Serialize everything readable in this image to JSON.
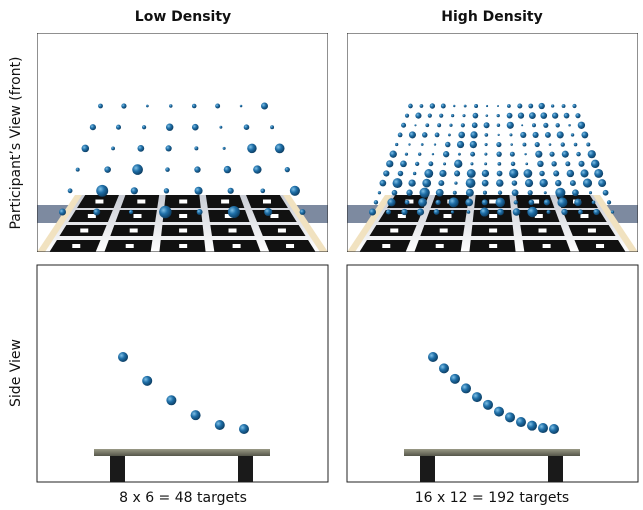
{
  "columns": [
    {
      "title": "Low Density",
      "caption": "8 x 6 = 48 targets"
    },
    {
      "title": "High Density",
      "caption": "16 x 12 = 192 targets"
    }
  ],
  "rows": [
    {
      "label": "Participant’s View (front)"
    },
    {
      "label": "Side View"
    }
  ]
}
